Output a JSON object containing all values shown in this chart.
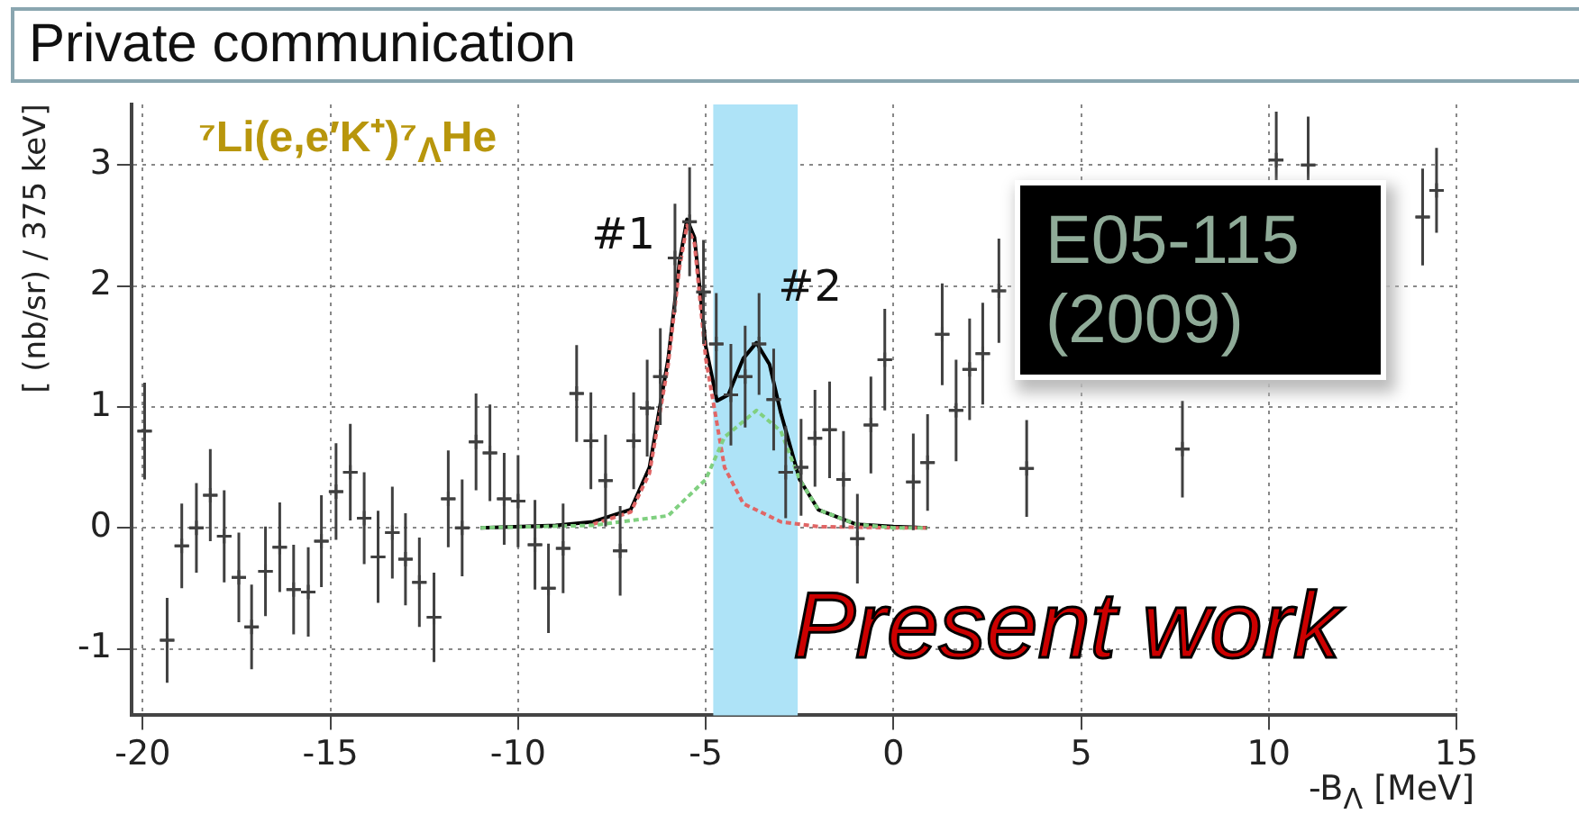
{
  "chart_data": {
    "type": "scatter",
    "xlabel": "-B$_{Λ}$ [MeV]",
    "ylabel": "[ (nb/sr) / 375 keV]",
    "xlim": [
      -20.3,
      15
    ],
    "ylim": [
      -1.55,
      3.5
    ],
    "xticks": [
      -20,
      -15,
      -10,
      -5,
      0,
      5,
      10,
      15
    ],
    "yticks": [
      -1,
      0,
      1,
      2,
      3
    ],
    "grid": true,
    "marker": "none",
    "bands": [
      {
        "axis": "x",
        "from": -4.8,
        "to": -2.55,
        "color": "#aee3f7"
      }
    ],
    "annotations": [
      "Private communication",
      "⁷Li(e,e′K⁺)⁷$_{Λ}$He",
      "E05-115 (2009)",
      "Present work",
      {
        "text": "#1",
        "x": -5.5,
        "y": 2.55
      },
      {
        "text": "#2",
        "x": -3.65,
        "y": 1.53
      }
    ],
    "series": [
      {
        "type": "scatter",
        "color": "#404040",
        "marker": "cross",
        "x": [
          -19.95,
          -19.35,
          -18.96,
          -18.57,
          -18.2,
          -17.83,
          -17.44,
          -17.1,
          -16.73,
          -16.35,
          -15.98,
          -15.59,
          -15.24,
          -14.85,
          -14.47,
          -14.1,
          -13.73,
          -13.35,
          -13.0,
          -12.63,
          -12.24,
          -11.86,
          -11.49,
          -11.12,
          -10.75,
          -10.37,
          -10.0,
          -9.55,
          -9.19,
          -8.8,
          -8.44,
          -8.06,
          -7.67,
          -7.28,
          -6.92,
          -6.56,
          -6.21,
          -5.82,
          -5.43,
          -5.06,
          -4.72,
          -4.33,
          -3.95,
          -3.58,
          -3.19,
          -2.87,
          -2.46,
          -2.09,
          -1.7,
          -1.33,
          -0.96,
          -0.6,
          -0.23,
          0.53,
          0.91,
          1.3,
          1.67,
          2.03,
          2.38,
          2.81,
          3.55,
          7.7,
          10.2,
          11.05,
          14.1,
          14.47
        ],
        "values": [
          0.8,
          -0.93,
          -0.15,
          0,
          0.27,
          -0.07,
          -0.41,
          -0.82,
          -0.36,
          -0.16,
          -0.51,
          -0.53,
          -0.11,
          0.3,
          0.46,
          0.08,
          -0.24,
          -0.04,
          -0.26,
          -0.45,
          -0.74,
          0.24,
          0,
          0.71,
          0.62,
          0.24,
          0.22,
          -0.14,
          -0.5,
          -0.17,
          1.11,
          0.72,
          0.39,
          -0.19,
          0.72,
          0.99,
          1.25,
          2.23,
          2.53,
          1.95,
          1.52,
          1.1,
          1.25,
          1.52,
          1.06,
          0.46,
          0.5,
          0.74,
          0.81,
          0.4,
          -0.09,
          0.85,
          1.39,
          0.38,
          0.54,
          1.6,
          0.97,
          1.31,
          1.44,
          1.96,
          0.49,
          0.65,
          3.04,
          3.0,
          2.57,
          2.79
        ],
        "errors": [
          0.4,
          0.35,
          0.35,
          0.37,
          0.38,
          0.38,
          0.37,
          0.35,
          0.37,
          0.37,
          0.37,
          0.37,
          0.38,
          0.4,
          0.4,
          0.38,
          0.38,
          0.38,
          0.38,
          0.37,
          0.37,
          0.4,
          0.4,
          0.4,
          0.4,
          0.38,
          0.38,
          0.37,
          0.37,
          0.37,
          0.4,
          0.4,
          0.38,
          0.37,
          0.4,
          0.4,
          0.4,
          0.45,
          0.45,
          0.43,
          0.42,
          0.42,
          0.42,
          0.42,
          0.42,
          0.38,
          0.4,
          0.4,
          0.4,
          0.4,
          0.37,
          0.4,
          0.42,
          0.4,
          0.4,
          0.42,
          0.42,
          0.42,
          0.42,
          0.43,
          0.4,
          0.4,
          0.4,
          0.4,
          0.4,
          0.35
        ],
        "xerrors": [
          0.19,
          0.19,
          0.19,
          0.19,
          0.19,
          0.19,
          0.19,
          0.19,
          0.19,
          0.19,
          0.19,
          0.19,
          0.19,
          0.19,
          0.19,
          0.19,
          0.19,
          0.19,
          0.19,
          0.19,
          0.19,
          0.19,
          0.19,
          0.19,
          0.19,
          0.19,
          0.19,
          0.19,
          0.19,
          0.19,
          0.19,
          0.19,
          0.19,
          0.19,
          0.19,
          0.19,
          0.19,
          0.19,
          0.19,
          0.19,
          0.19,
          0.19,
          0.19,
          0.19,
          0.19,
          0.19,
          0.19,
          0.19,
          0.19,
          0.19,
          0.19,
          0.19,
          0.19,
          0.19,
          0.19,
          0.19,
          0.19,
          0.19,
          0.19,
          0.19,
          0.19,
          0.19,
          0.19,
          0.19,
          0.19,
          0.19
        ]
      },
      {
        "type": "line",
        "color": "#000000",
        "line_style": "solid",
        "x": [
          -11,
          -9,
          -8,
          -7,
          -6.5,
          -6,
          -5.7,
          -5.5,
          -5.3,
          -5,
          -4.7,
          -4.4,
          -4,
          -3.65,
          -3.3,
          -3,
          -2.5,
          -2,
          -1,
          0,
          0.9
        ],
        "values": [
          0,
          0.02,
          0.05,
          0.15,
          0.5,
          1.4,
          2.2,
          2.55,
          2.4,
          1.5,
          1.05,
          1.1,
          1.4,
          1.53,
          1.35,
          0.95,
          0.4,
          0.15,
          0.03,
          0.01,
          0
        ]
      },
      {
        "type": "line",
        "color": "#e06666",
        "line_style": "dashed",
        "x": [
          -8,
          -7,
          -6.5,
          -6,
          -5.7,
          -5.5,
          -5.3,
          -5,
          -4.5,
          -4,
          -3,
          -2,
          0,
          0.9
        ],
        "values": [
          0.03,
          0.13,
          0.45,
          1.35,
          2.15,
          2.5,
          2.35,
          1.4,
          0.5,
          0.2,
          0.05,
          0.01,
          0,
          0
        ]
      },
      {
        "type": "line",
        "color": "#80d080",
        "line_style": "dashed",
        "x": [
          -11,
          -8,
          -6,
          -5,
          -4.5,
          -3.65,
          -3,
          -2.5,
          -2,
          -1,
          0,
          0.9
        ],
        "values": [
          0,
          0.02,
          0.1,
          0.4,
          0.75,
          0.97,
          0.8,
          0.4,
          0.15,
          0.03,
          0,
          0
        ]
      }
    ]
  }
}
